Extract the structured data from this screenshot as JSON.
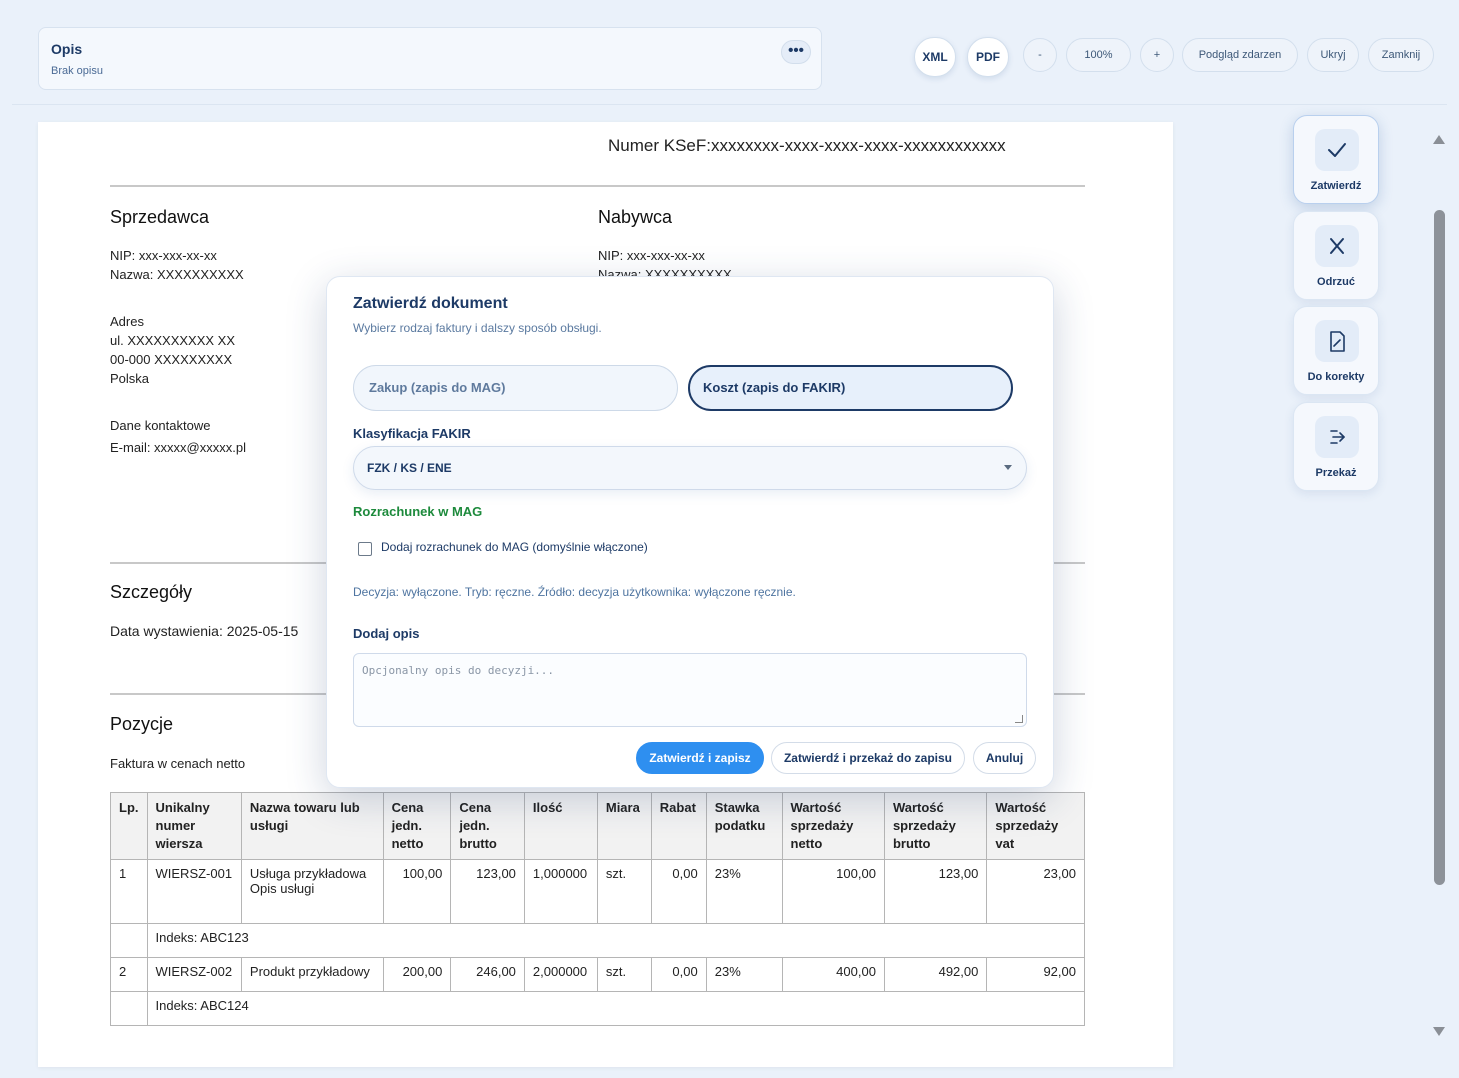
{
  "header": {
    "desc_title": "Opis",
    "desc_sub": "Brak opisu",
    "more_label": "•••",
    "xml": "XML",
    "pdf": "PDF",
    "zoom_out": "-",
    "zoom": "100%",
    "zoom_in": "+",
    "events": "Podgląd zdarzen",
    "hide": "Ukryj",
    "close": "Zamknij"
  },
  "doc": {
    "ksef": "Numer KSeF:xxxxxxxx-xxxx-xxxx-xxxx-xxxxxxxxxxxx",
    "seller_h": "Sprzedawca",
    "seller_nip": "NIP: xxx-xxx-xx-xx",
    "seller_name": "Nazwa: XXXXXXXXXX",
    "addr_h": "Adres",
    "addr_1": "ul. XXXXXXXXXX XX",
    "addr_2": "00-000 XXXXXXXXX",
    "addr_3": "Polska",
    "contact_h": "Dane kontaktowe",
    "contact_email": "E-mail: xxxxx@xxxxx.pl",
    "buyer_h": "Nabywca",
    "buyer_nip": "NIP: xxx-xxx-xx-xx",
    "buyer_name": "Nazwa: XXXXXXXXXX",
    "details_h": "Szczegóły",
    "issue_date": "Data wystawienia: 2025-05-15",
    "items_h": "Pozycje",
    "items_note": "Faktura w cenach netto",
    "columns": [
      "Lp.",
      "Unikalny numer wiersza",
      "Nazwa towaru lub usługi",
      "Cena jedn. netto",
      "Cena jedn. brutto",
      "Ilość",
      "Miara",
      "Rabat",
      "Stawka podatku",
      "Wartość sprzedaży netto",
      "Wartość sprzedaży brutto",
      "Wartość sprzedaży vat"
    ],
    "rows": [
      {
        "lp": "1",
        "id": "WIERSZ-001",
        "name": "Usługa przykładowa",
        "name2": "Opis usługi",
        "net": "100,00",
        "gross": "123,00",
        "qty": "1,000000",
        "unit": "szt.",
        "disc": "0,00",
        "vat": "23%",
        "v_net": "100,00",
        "v_gross": "123,00",
        "v_vat": "23,00",
        "index": "Indeks: ABC123"
      },
      {
        "lp": "2",
        "id": "WIERSZ-002",
        "name": "Produkt przykładowy",
        "name2": "",
        "net": "200,00",
        "gross": "246,00",
        "qty": "2,000000",
        "unit": "szt.",
        "disc": "0,00",
        "vat": "23%",
        "v_net": "400,00",
        "v_gross": "492,00",
        "v_vat": "92,00",
        "index": "Indeks: ABC124"
      }
    ]
  },
  "side": {
    "approve": "Zatwierdź",
    "reject": "Odrzuć",
    "correct": "Do korekty",
    "forward": "Przekaż"
  },
  "modal": {
    "title": "Zatwierdź dokument",
    "subtitle": "Wybierz rodzaj faktury i dalszy sposób obsługi.",
    "opt_purchase": "Zakup (zapis do MAG)",
    "opt_cost": "Koszt (zapis do FAKIR)",
    "class_label": "Klasyfikacja FAKIR",
    "class_value": "FZK / KS / ENE",
    "settle_label": "Rozrachunek w MAG",
    "checkbox_label": "Dodaj rozrachunek do MAG (domyślnie włączone)",
    "decision": "Decyzja: wyłączone. Tryb: ręczne. Źródło: decyzja użytkownika: wyłączone ręcznie.",
    "desc_label": "Dodaj opis",
    "desc_placeholder": "Opcjonalny opis do decyzji...",
    "btn_save": "Zatwierdź i zapisz",
    "btn_forward": "Zatwierdź i przekaż do zapisu",
    "btn_cancel": "Anuluj"
  },
  "colors": {
    "accent": "#2e8ff0",
    "navy": "#1d3a66",
    "green": "#1d8a3c"
  }
}
